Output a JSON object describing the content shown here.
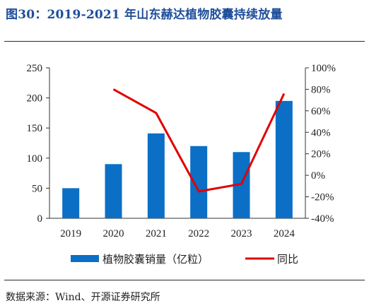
{
  "figure": {
    "title": "图30：2019-2021 年山东赫达植物胶囊持续放量",
    "source": "数据来源：Wind、开源证券研究所"
  },
  "colors": {
    "bar": "#0b6fc6",
    "line": "#e00000",
    "title": "#1f4e9a"
  },
  "chart_data": {
    "type": "bar+line",
    "categories": [
      "2019",
      "2020",
      "2021",
      "2022",
      "2023",
      "2024"
    ],
    "series": [
      {
        "name": "植物胶囊销量（亿粒）",
        "type": "bar",
        "axis": "left",
        "values": [
          50,
          90,
          141,
          120,
          110,
          195
        ]
      },
      {
        "name": "同比",
        "type": "line",
        "axis": "right",
        "unit": "%",
        "values": [
          null,
          80,
          58,
          -15,
          -8,
          76
        ]
      }
    ],
    "y_left": {
      "min": 0,
      "max": 250,
      "ticks": [
        0,
        50,
        100,
        150,
        200,
        250
      ],
      "tick_labels": [
        "0",
        "50",
        "100",
        "150",
        "200",
        "250"
      ]
    },
    "y_right": {
      "min": -40,
      "max": 100,
      "ticks": [
        -40,
        -20,
        0,
        20,
        40,
        60,
        80,
        100
      ],
      "tick_labels": [
        "-40%",
        "-20%",
        "0%",
        "20%",
        "40%",
        "60%",
        "80%",
        "100%"
      ]
    },
    "legend": {
      "position": "bottom",
      "items": [
        "植物胶囊销量（亿粒）",
        "同比"
      ]
    },
    "grid": false
  }
}
